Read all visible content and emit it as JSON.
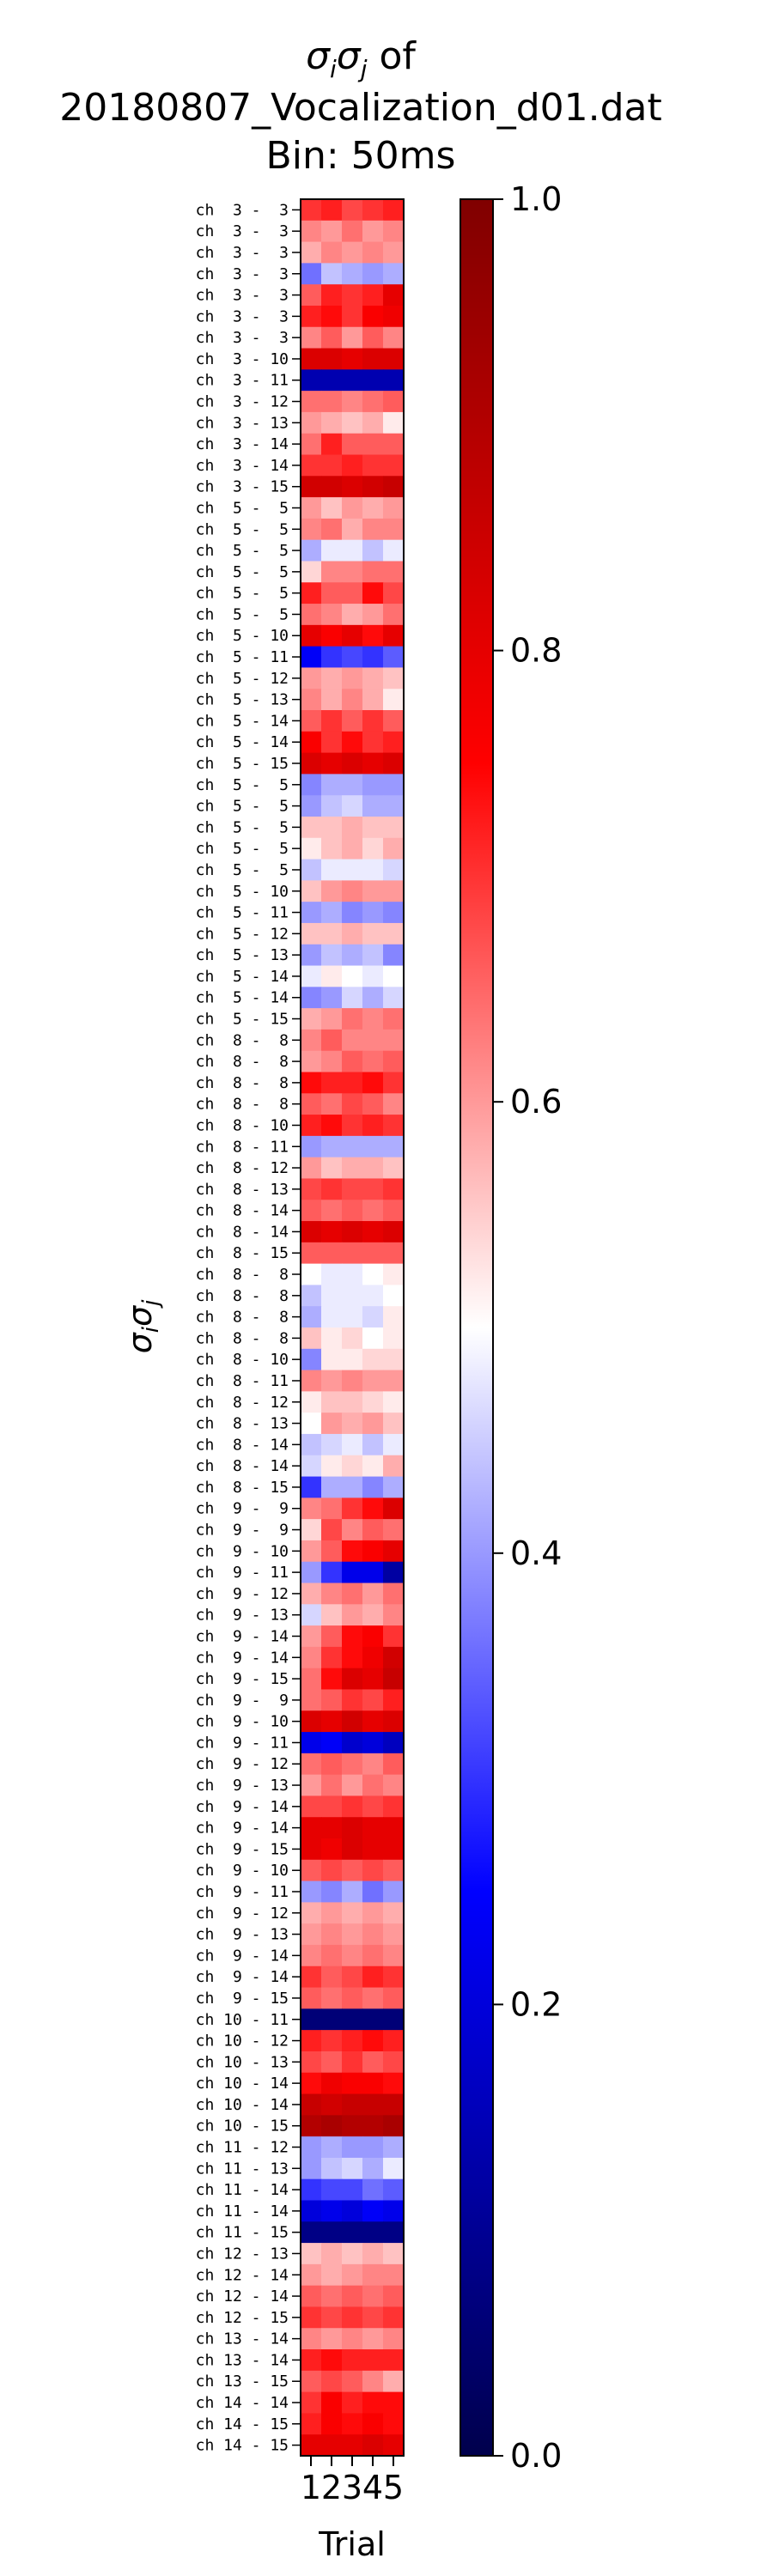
{
  "chart_data": {
    "type": "heatmap",
    "title_lines": [
      "σ_iσ_j of",
      "20180807_Vocalization_d01.dat",
      "Bin: 50ms"
    ],
    "xlabel": "Trial",
    "ylabel": "σ_iσ_j",
    "x": [
      "1",
      "2",
      "3",
      "4",
      "5"
    ],
    "colorbar": {
      "min": 0.0,
      "max": 1.0,
      "ticks": [
        "0.0",
        "0.2",
        "0.4",
        "0.6",
        "0.8",
        "1.0"
      ],
      "colormap": "seismic"
    },
    "rows": [
      {
        "label": "ch  3 -  3",
        "values": [
          0.7,
          0.72,
          0.68,
          0.7,
          0.72
        ]
      },
      {
        "label": "ch  3 -  3",
        "values": [
          0.62,
          0.6,
          0.64,
          0.6,
          0.62
        ]
      },
      {
        "label": "ch  3 -  3",
        "values": [
          0.58,
          0.62,
          0.6,
          0.62,
          0.6
        ]
      },
      {
        "label": "ch  3 -  3",
        "values": [
          0.36,
          0.44,
          0.42,
          0.4,
          0.42
        ]
      },
      {
        "label": "ch  3 -  3",
        "values": [
          0.66,
          0.72,
          0.7,
          0.72,
          0.8
        ]
      },
      {
        "label": "ch  3 -  3",
        "values": [
          0.72,
          0.74,
          0.7,
          0.76,
          0.78
        ]
      },
      {
        "label": "ch  3 -  3",
        "values": [
          0.62,
          0.66,
          0.6,
          0.66,
          0.62
        ]
      },
      {
        "label": "ch  3 - 10",
        "values": [
          0.82,
          0.82,
          0.8,
          0.82,
          0.82
        ]
      },
      {
        "label": "ch  3 - 11",
        "values": [
          0.14,
          0.14,
          0.14,
          0.14,
          0.14
        ]
      },
      {
        "label": "ch  3 - 12",
        "values": [
          0.64,
          0.64,
          0.62,
          0.64,
          0.66
        ]
      },
      {
        "label": "ch  3 - 13",
        "values": [
          0.6,
          0.58,
          0.56,
          0.58,
          0.52
        ]
      },
      {
        "label": "ch  3 - 14",
        "values": [
          0.64,
          0.72,
          0.66,
          0.66,
          0.66
        ]
      },
      {
        "label": "ch  3 - 14",
        "values": [
          0.7,
          0.7,
          0.72,
          0.7,
          0.7
        ]
      },
      {
        "label": "ch  3 - 15",
        "values": [
          0.84,
          0.84,
          0.82,
          0.84,
          0.86
        ]
      },
      {
        "label": "ch  5 -  5",
        "values": [
          0.6,
          0.56,
          0.6,
          0.58,
          0.6
        ]
      },
      {
        "label": "ch  5 -  5",
        "values": [
          0.62,
          0.64,
          0.58,
          0.62,
          0.62
        ]
      },
      {
        "label": "ch  5 -  5",
        "values": [
          0.42,
          0.48,
          0.48,
          0.44,
          0.48
        ]
      },
      {
        "label": "ch  5 -  5",
        "values": [
          0.54,
          0.62,
          0.62,
          0.64,
          0.64
        ]
      },
      {
        "label": "ch  5 -  5",
        "values": [
          0.72,
          0.66,
          0.66,
          0.74,
          0.68
        ]
      },
      {
        "label": "ch  5 -  5",
        "values": [
          0.64,
          0.62,
          0.58,
          0.6,
          0.64
        ]
      },
      {
        "label": "ch  5 - 10",
        "values": [
          0.8,
          0.76,
          0.8,
          0.74,
          0.8
        ]
      },
      {
        "label": "ch  5 - 11",
        "values": [
          0.24,
          0.3,
          0.32,
          0.3,
          0.34
        ]
      },
      {
        "label": "ch  5 - 12",
        "values": [
          0.6,
          0.58,
          0.6,
          0.58,
          0.56
        ]
      },
      {
        "label": "ch  5 - 13",
        "values": [
          0.62,
          0.58,
          0.62,
          0.58,
          0.52
        ]
      },
      {
        "label": "ch  5 - 14",
        "values": [
          0.66,
          0.7,
          0.66,
          0.7,
          0.66
        ]
      },
      {
        "label": "ch  5 - 14",
        "values": [
          0.76,
          0.7,
          0.74,
          0.7,
          0.72
        ]
      },
      {
        "label": "ch  5 - 15",
        "values": [
          0.82,
          0.8,
          0.82,
          0.8,
          0.82
        ]
      },
      {
        "label": "ch  5 -  5",
        "values": [
          0.38,
          0.42,
          0.42,
          0.4,
          0.4
        ]
      },
      {
        "label": "ch  5 -  5",
        "values": [
          0.4,
          0.44,
          0.46,
          0.42,
          0.42
        ]
      },
      {
        "label": "ch  5 -  5",
        "values": [
          0.56,
          0.56,
          0.58,
          0.56,
          0.56
        ]
      },
      {
        "label": "ch  5 -  5",
        "values": [
          0.52,
          0.56,
          0.58,
          0.54,
          0.58
        ]
      },
      {
        "label": "ch  5 -  5",
        "values": [
          0.44,
          0.48,
          0.48,
          0.48,
          0.46
        ]
      },
      {
        "label": "ch  5 - 10",
        "values": [
          0.56,
          0.6,
          0.62,
          0.6,
          0.6
        ]
      },
      {
        "label": "ch  5 - 11",
        "values": [
          0.4,
          0.42,
          0.38,
          0.4,
          0.38
        ]
      },
      {
        "label": "ch  5 - 12",
        "values": [
          0.56,
          0.56,
          0.58,
          0.56,
          0.56
        ]
      },
      {
        "label": "ch  5 - 13",
        "values": [
          0.4,
          0.44,
          0.42,
          0.44,
          0.38
        ]
      },
      {
        "label": "ch  5 - 14",
        "values": [
          0.48,
          0.52,
          0.5,
          0.48,
          0.5
        ]
      },
      {
        "label": "ch  5 - 14",
        "values": [
          0.38,
          0.4,
          0.46,
          0.42,
          0.46
        ]
      },
      {
        "label": "ch  5 - 15",
        "values": [
          0.58,
          0.6,
          0.64,
          0.62,
          0.64
        ]
      },
      {
        "label": "ch  8 -  8",
        "values": [
          0.62,
          0.66,
          0.62,
          0.62,
          0.62
        ]
      },
      {
        "label": "ch  8 -  8",
        "values": [
          0.6,
          0.62,
          0.66,
          0.64,
          0.66
        ]
      },
      {
        "label": "ch  8 -  8",
        "values": [
          0.74,
          0.72,
          0.72,
          0.74,
          0.7
        ]
      },
      {
        "label": "ch  8 -  8",
        "values": [
          0.66,
          0.64,
          0.68,
          0.66,
          0.62
        ]
      },
      {
        "label": "ch  8 - 10",
        "values": [
          0.72,
          0.74,
          0.7,
          0.72,
          0.7
        ]
      },
      {
        "label": "ch  8 - 11",
        "values": [
          0.4,
          0.42,
          0.42,
          0.42,
          0.42
        ]
      },
      {
        "label": "ch  8 - 12",
        "values": [
          0.6,
          0.56,
          0.58,
          0.58,
          0.56
        ]
      },
      {
        "label": "ch  8 - 13",
        "values": [
          0.68,
          0.7,
          0.68,
          0.68,
          0.7
        ]
      },
      {
        "label": "ch  8 - 14",
        "values": [
          0.66,
          0.64,
          0.66,
          0.64,
          0.66
        ]
      },
      {
        "label": "ch  8 - 14",
        "values": [
          0.82,
          0.8,
          0.82,
          0.8,
          0.82
        ]
      },
      {
        "label": "ch  8 - 15",
        "values": [
          0.66,
          0.66,
          0.66,
          0.66,
          0.66
        ]
      },
      {
        "label": "ch  8 -  8",
        "values": [
          0.5,
          0.48,
          0.48,
          0.5,
          0.52
        ]
      },
      {
        "label": "ch  8 -  8",
        "values": [
          0.44,
          0.48,
          0.48,
          0.48,
          0.5
        ]
      },
      {
        "label": "ch  8 -  8",
        "values": [
          0.42,
          0.48,
          0.48,
          0.46,
          0.52
        ]
      },
      {
        "label": "ch  8 -  8",
        "values": [
          0.56,
          0.52,
          0.54,
          0.5,
          0.52
        ]
      },
      {
        "label": "ch  8 - 10",
        "values": [
          0.38,
          0.52,
          0.52,
          0.54,
          0.54
        ]
      },
      {
        "label": "ch  8 - 11",
        "values": [
          0.62,
          0.6,
          0.62,
          0.6,
          0.6
        ]
      },
      {
        "label": "ch  8 - 12",
        "values": [
          0.52,
          0.56,
          0.56,
          0.54,
          0.52
        ]
      },
      {
        "label": "ch  8 - 13",
        "values": [
          0.5,
          0.6,
          0.58,
          0.6,
          0.56
        ]
      },
      {
        "label": "ch  8 - 14",
        "values": [
          0.44,
          0.46,
          0.48,
          0.44,
          0.48
        ]
      },
      {
        "label": "ch  8 - 14",
        "values": [
          0.46,
          0.52,
          0.54,
          0.52,
          0.58
        ]
      },
      {
        "label": "ch  8 - 15",
        "values": [
          0.3,
          0.42,
          0.42,
          0.38,
          0.42
        ]
      },
      {
        "label": "ch  9 -  9",
        "values": [
          0.62,
          0.64,
          0.7,
          0.74,
          0.82
        ]
      },
      {
        "label": "ch  9 -  9",
        "values": [
          0.54,
          0.68,
          0.62,
          0.66,
          0.64
        ]
      },
      {
        "label": "ch  9 - 10",
        "values": [
          0.6,
          0.66,
          0.74,
          0.76,
          0.8
        ]
      },
      {
        "label": "ch  9 - 11",
        "values": [
          0.4,
          0.3,
          0.22,
          0.22,
          0.12
        ]
      },
      {
        "label": "ch  9 - 12",
        "values": [
          0.58,
          0.62,
          0.64,
          0.6,
          0.64
        ]
      },
      {
        "label": "ch  9 - 13",
        "values": [
          0.46,
          0.56,
          0.6,
          0.58,
          0.62
        ]
      },
      {
        "label": "ch  9 - 14",
        "values": [
          0.6,
          0.66,
          0.74,
          0.76,
          0.7
        ]
      },
      {
        "label": "ch  9 - 14",
        "values": [
          0.62,
          0.7,
          0.74,
          0.78,
          0.84
        ]
      },
      {
        "label": "ch  9 - 15",
        "values": [
          0.64,
          0.74,
          0.82,
          0.8,
          0.86
        ]
      },
      {
        "label": "ch  9 -  9",
        "values": [
          0.64,
          0.66,
          0.7,
          0.68,
          0.72
        ]
      },
      {
        "label": "ch  9 - 10",
        "values": [
          0.82,
          0.8,
          0.84,
          0.8,
          0.82
        ]
      },
      {
        "label": "ch  9 - 11",
        "values": [
          0.22,
          0.24,
          0.18,
          0.2,
          0.16
        ]
      },
      {
        "label": "ch  9 - 12",
        "values": [
          0.64,
          0.66,
          0.64,
          0.62,
          0.66
        ]
      },
      {
        "label": "ch  9 - 13",
        "values": [
          0.6,
          0.64,
          0.6,
          0.64,
          0.62
        ]
      },
      {
        "label": "ch  9 - 14",
        "values": [
          0.68,
          0.68,
          0.7,
          0.68,
          0.7
        ]
      },
      {
        "label": "ch  9 - 14",
        "values": [
          0.8,
          0.8,
          0.82,
          0.8,
          0.8
        ]
      },
      {
        "label": "ch  9 - 15",
        "values": [
          0.8,
          0.78,
          0.82,
          0.8,
          0.8
        ]
      },
      {
        "label": "ch  9 - 10",
        "values": [
          0.66,
          0.68,
          0.66,
          0.68,
          0.66
        ]
      },
      {
        "label": "ch  9 - 11",
        "values": [
          0.4,
          0.38,
          0.42,
          0.36,
          0.4
        ]
      },
      {
        "label": "ch  9 - 12",
        "values": [
          0.58,
          0.6,
          0.58,
          0.6,
          0.58
        ]
      },
      {
        "label": "ch  9 - 13",
        "values": [
          0.6,
          0.62,
          0.6,
          0.62,
          0.6
        ]
      },
      {
        "label": "ch  9 - 14",
        "values": [
          0.62,
          0.64,
          0.62,
          0.64,
          0.62
        ]
      },
      {
        "label": "ch  9 - 14",
        "values": [
          0.7,
          0.66,
          0.68,
          0.72,
          0.7
        ]
      },
      {
        "label": "ch  9 - 15",
        "values": [
          0.66,
          0.64,
          0.66,
          0.64,
          0.66
        ]
      },
      {
        "label": "ch 10 - 11",
        "values": [
          0.06,
          0.06,
          0.06,
          0.06,
          0.06
        ]
      },
      {
        "label": "ch 10 - 12",
        "values": [
          0.72,
          0.7,
          0.72,
          0.74,
          0.72
        ]
      },
      {
        "label": "ch 10 - 13",
        "values": [
          0.68,
          0.66,
          0.7,
          0.66,
          0.68
        ]
      },
      {
        "label": "ch 10 - 14",
        "values": [
          0.74,
          0.78,
          0.76,
          0.76,
          0.74
        ]
      },
      {
        "label": "ch 10 - 14",
        "values": [
          0.86,
          0.84,
          0.86,
          0.86,
          0.86
        ]
      },
      {
        "label": "ch 10 - 15",
        "values": [
          0.9,
          0.92,
          0.9,
          0.9,
          0.92
        ]
      },
      {
        "label": "ch 11 - 12",
        "values": [
          0.4,
          0.42,
          0.4,
          0.4,
          0.42
        ]
      },
      {
        "label": "ch 11 - 13",
        "values": [
          0.4,
          0.44,
          0.46,
          0.42,
          0.48
        ]
      },
      {
        "label": "ch 11 - 14",
        "values": [
          0.3,
          0.32,
          0.32,
          0.36,
          0.34
        ]
      },
      {
        "label": "ch 11 - 14",
        "values": [
          0.2,
          0.22,
          0.2,
          0.24,
          0.22
        ]
      },
      {
        "label": "ch 11 - 15",
        "values": [
          0.08,
          0.08,
          0.08,
          0.08,
          0.08
        ]
      },
      {
        "label": "ch 12 - 13",
        "values": [
          0.56,
          0.58,
          0.56,
          0.58,
          0.56
        ]
      },
      {
        "label": "ch 12 - 14",
        "values": [
          0.6,
          0.58,
          0.6,
          0.62,
          0.62
        ]
      },
      {
        "label": "ch 12 - 14",
        "values": [
          0.66,
          0.64,
          0.66,
          0.64,
          0.66
        ]
      },
      {
        "label": "ch 12 - 15",
        "values": [
          0.7,
          0.68,
          0.7,
          0.68,
          0.7
        ]
      },
      {
        "label": "ch 13 - 14",
        "values": [
          0.62,
          0.6,
          0.62,
          0.6,
          0.62
        ]
      },
      {
        "label": "ch 13 - 14",
        "values": [
          0.72,
          0.74,
          0.72,
          0.72,
          0.72
        ]
      },
      {
        "label": "ch 13 - 15",
        "values": [
          0.66,
          0.68,
          0.66,
          0.62,
          0.58
        ]
      },
      {
        "label": "ch 14 - 14",
        "values": [
          0.7,
          0.76,
          0.72,
          0.74,
          0.74
        ]
      },
      {
        "label": "ch 14 - 15",
        "values": [
          0.72,
          0.76,
          0.74,
          0.76,
          0.74
        ]
      },
      {
        "label": "ch 14 - 15",
        "values": [
          0.8,
          0.8,
          0.8,
          0.82,
          0.8
        ]
      }
    ]
  }
}
